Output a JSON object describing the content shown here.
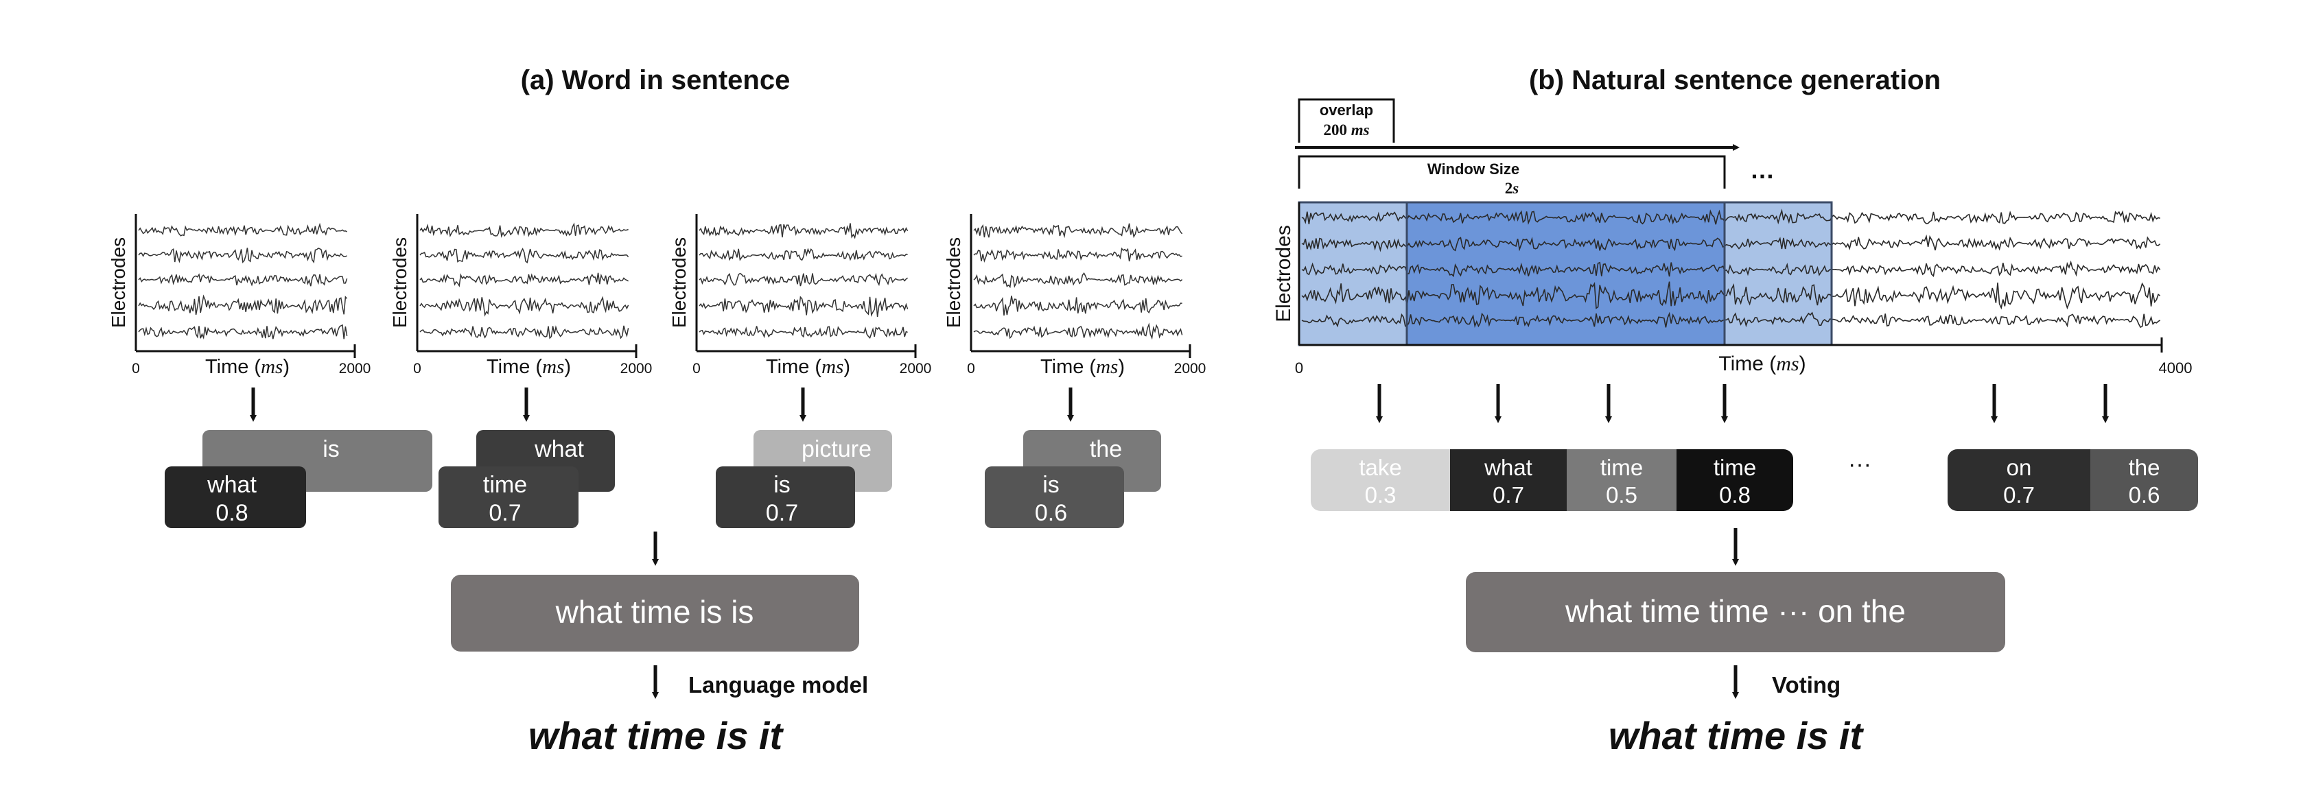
{
  "panel_a": {
    "title": "(a) Word in sentence",
    "ylabel": "Electrodes",
    "xlabel_prefix": "Time (",
    "xlabel_unit": "ms",
    "xlabel_suffix": ")",
    "tick_start": "0",
    "tick_end": "2000",
    "plots": [
      {
        "top": {
          "word": "is",
          "color": "#7a7a7a"
        },
        "bottom": {
          "word": "what",
          "score": "0.8",
          "color": "#262626"
        }
      },
      {
        "top": {
          "word": "what",
          "color": "#3c3c3c"
        },
        "bottom": {
          "word": "time",
          "score": "0.7",
          "color": "#414141"
        }
      },
      {
        "top": {
          "word": "picture",
          "color": "#b4b4b4"
        },
        "bottom": {
          "word": "is",
          "score": "0.7",
          "color": "#3a3a3a"
        }
      },
      {
        "top": {
          "word": "the",
          "color": "#7a7a7a"
        },
        "bottom": {
          "word": "is",
          "score": "0.6",
          "color": "#555555"
        }
      }
    ],
    "combined": "what time is is",
    "combined_color": "#767272",
    "lm_label": "Language model",
    "result": "what time is it"
  },
  "panel_b": {
    "title": "(b) Natural sentence generation",
    "overlap_label": "overlap",
    "overlap_value": "200 ",
    "overlap_unit": "ms",
    "window_label": "Window Size",
    "window_value": "2",
    "window_unit": "s",
    "ellipsis_top": "…",
    "ylabel": "Electrodes",
    "xlabel_prefix": "Time (",
    "xlabel_unit": "ms",
    "xlabel_suffix": ")",
    "tick_start": "0",
    "tick_end": "4000",
    "window_fill_light": "#a9c2e6",
    "window_fill_dark": "#6c95d9",
    "words": [
      {
        "word": "take",
        "score": "0.3",
        "color": "#d4d4d4"
      },
      {
        "word": "what",
        "score": "0.7",
        "color": "#262626"
      },
      {
        "word": "time",
        "score": "0.5",
        "color": "#7a7a7a"
      },
      {
        "word": "time",
        "score": "0.8",
        "color": "#111111"
      }
    ],
    "ellipsis_mid": "···",
    "words_right": [
      {
        "word": "on",
        "score": "0.7",
        "color": "#2e2e2e"
      },
      {
        "word": "the",
        "score": "0.6",
        "color": "#555555"
      }
    ],
    "combined": "what time time ··· on the",
    "combined_color": "#767272",
    "voting_label": "Voting",
    "result": "what time is it"
  }
}
